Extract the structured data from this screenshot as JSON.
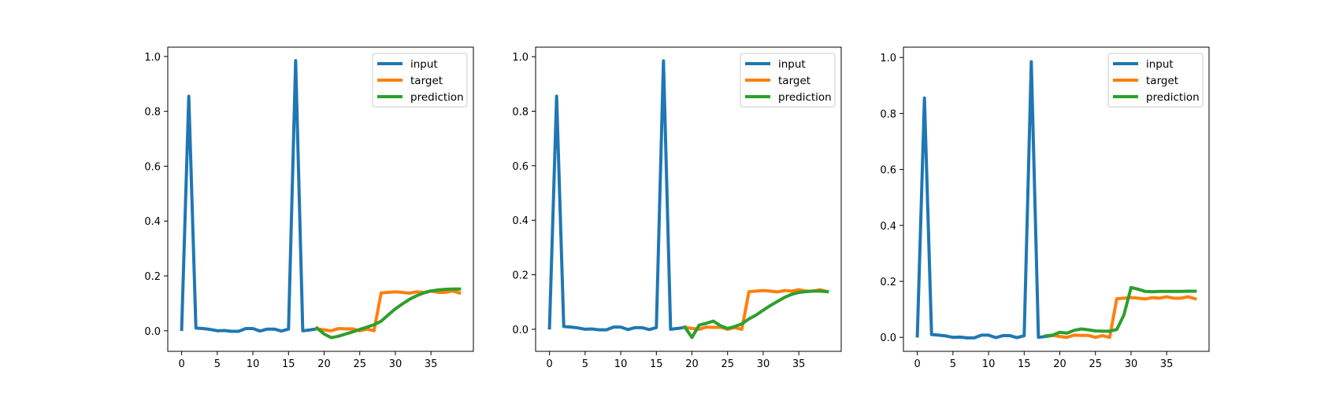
{
  "colors": {
    "input": "#1f77b4",
    "target": "#ff7f0e",
    "prediction": "#2ca02c"
  },
  "chart_data": [
    {
      "type": "line",
      "xlim": [
        -1.95,
        40.95
      ],
      "ylim": [
        -0.075,
        1.034
      ],
      "xticks": [
        0,
        5,
        10,
        15,
        20,
        25,
        30,
        35
      ],
      "yticks": [
        0.0,
        0.2,
        0.4,
        0.6,
        0.8,
        1.0
      ],
      "ytick_labels": [
        "0.0",
        "0.2",
        "0.4",
        "0.6",
        "0.8",
        "1.0"
      ],
      "legend": {
        "position": "upper right",
        "entries": [
          "input",
          "target",
          "prediction"
        ]
      },
      "series": [
        {
          "name": "input",
          "color": "#1f77b4",
          "x": [
            0,
            1,
            2,
            3,
            4,
            5,
            6,
            7,
            8,
            9,
            10,
            11,
            12,
            13,
            14,
            15,
            16,
            17,
            18,
            19
          ],
          "y": [
            0.005,
            0.855,
            0.01,
            0.008,
            0.005,
            0.0,
            0.001,
            -0.002,
            -0.002,
            0.008,
            0.008,
            -0.001,
            0.006,
            0.006,
            -0.001,
            0.006,
            0.985,
            0.0,
            0.003,
            0.007
          ]
        },
        {
          "name": "target",
          "color": "#ff7f0e",
          "x": [
            19,
            20,
            21,
            22,
            23,
            24,
            25,
            26,
            27,
            28,
            29,
            30,
            31,
            32,
            33,
            34,
            35,
            36,
            37,
            38,
            39
          ],
          "y": [
            0.007,
            0.003,
            0.0,
            0.008,
            0.007,
            0.007,
            0.0,
            0.006,
            0.0,
            0.138,
            0.14,
            0.142,
            0.14,
            0.137,
            0.142,
            0.14,
            0.145,
            0.14,
            0.14,
            0.145,
            0.138
          ]
        },
        {
          "name": "prediction",
          "color": "#2ca02c",
          "x": [
            19,
            20,
            21,
            22,
            23,
            24,
            25,
            26,
            27,
            28,
            29,
            30,
            31,
            32,
            33,
            34,
            35,
            36,
            37,
            38,
            39
          ],
          "y": [
            0.01,
            -0.012,
            -0.025,
            -0.02,
            -0.012,
            -0.004,
            0.005,
            0.013,
            0.022,
            0.035,
            0.058,
            0.08,
            0.098,
            0.115,
            0.128,
            0.138,
            0.145,
            0.149,
            0.151,
            0.152,
            0.152
          ]
        }
      ]
    },
    {
      "type": "line",
      "xlim": [
        -1.95,
        40.95
      ],
      "ylim": [
        -0.081,
        1.035
      ],
      "xticks": [
        0,
        5,
        10,
        15,
        20,
        25,
        30,
        35
      ],
      "yticks": [
        0.0,
        0.2,
        0.4,
        0.6,
        0.8,
        1.0
      ],
      "ytick_labels": [
        "0.0",
        "0.2",
        "0.4",
        "0.6",
        "0.8",
        "1.0"
      ],
      "legend": {
        "position": "upper right",
        "entries": [
          "input",
          "target",
          "prediction"
        ]
      },
      "series": [
        {
          "name": "input",
          "color": "#1f77b4",
          "x": [
            0,
            1,
            2,
            3,
            4,
            5,
            6,
            7,
            8,
            9,
            10,
            11,
            12,
            13,
            14,
            15,
            16,
            17,
            18,
            19
          ],
          "y": [
            0.005,
            0.855,
            0.01,
            0.008,
            0.005,
            0.0,
            0.001,
            -0.002,
            -0.002,
            0.008,
            0.008,
            -0.001,
            0.006,
            0.006,
            -0.001,
            0.006,
            0.985,
            0.0,
            0.003,
            0.007
          ]
        },
        {
          "name": "target",
          "color": "#ff7f0e",
          "x": [
            19,
            20,
            21,
            22,
            23,
            24,
            25,
            26,
            27,
            28,
            29,
            30,
            31,
            32,
            33,
            34,
            35,
            36,
            37,
            38,
            39
          ],
          "y": [
            0.007,
            0.003,
            0.0,
            0.008,
            0.007,
            0.007,
            0.0,
            0.006,
            0.0,
            0.138,
            0.14,
            0.142,
            0.14,
            0.137,
            0.142,
            0.14,
            0.145,
            0.14,
            0.14,
            0.145,
            0.138
          ]
        },
        {
          "name": "prediction",
          "color": "#2ca02c",
          "x": [
            19,
            20,
            21,
            22,
            23,
            24,
            25,
            26,
            27,
            28,
            29,
            30,
            31,
            32,
            33,
            34,
            35,
            36,
            37,
            38,
            39
          ],
          "y": [
            0.008,
            -0.03,
            0.015,
            0.022,
            0.03,
            0.013,
            0.003,
            0.01,
            0.02,
            0.038,
            0.052,
            0.07,
            0.087,
            0.102,
            0.117,
            0.128,
            0.135,
            0.138,
            0.14,
            0.14,
            0.138
          ]
        }
      ]
    },
    {
      "type": "line",
      "xlim": [
        -1.95,
        40.95
      ],
      "ylim": [
        -0.05,
        1.037
      ],
      "xticks": [
        0,
        5,
        10,
        15,
        20,
        25,
        30,
        35
      ],
      "yticks": [
        0.0,
        0.2,
        0.4,
        0.6,
        0.8,
        1.0
      ],
      "ytick_labels": [
        "0.0",
        "0.2",
        "0.4",
        "0.6",
        "0.8",
        "1.0"
      ],
      "legend": {
        "position": "upper right",
        "entries": [
          "input",
          "target",
          "prediction"
        ]
      },
      "series": [
        {
          "name": "input",
          "color": "#1f77b4",
          "x": [
            0,
            1,
            2,
            3,
            4,
            5,
            6,
            7,
            8,
            9,
            10,
            11,
            12,
            13,
            14,
            15,
            16,
            17,
            18,
            19
          ],
          "y": [
            0.005,
            0.855,
            0.01,
            0.008,
            0.005,
            0.0,
            0.001,
            -0.002,
            -0.002,
            0.008,
            0.008,
            -0.001,
            0.006,
            0.006,
            -0.001,
            0.006,
            0.985,
            0.0,
            0.003,
            0.007
          ]
        },
        {
          "name": "target",
          "color": "#ff7f0e",
          "x": [
            19,
            20,
            21,
            22,
            23,
            24,
            25,
            26,
            27,
            28,
            29,
            30,
            31,
            32,
            33,
            34,
            35,
            36,
            37,
            38,
            39
          ],
          "y": [
            0.007,
            0.003,
            0.0,
            0.008,
            0.007,
            0.007,
            0.0,
            0.006,
            0.0,
            0.138,
            0.14,
            0.142,
            0.14,
            0.137,
            0.142,
            0.14,
            0.145,
            0.14,
            0.14,
            0.145,
            0.138
          ]
        },
        {
          "name": "prediction",
          "color": "#2ca02c",
          "x": [
            18,
            19,
            20,
            21,
            22,
            23,
            24,
            25,
            26,
            27,
            28,
            29,
            30,
            31,
            32,
            33,
            34,
            35,
            36,
            37,
            38,
            39
          ],
          "y": [
            0.005,
            0.008,
            0.018,
            0.015,
            0.025,
            0.03,
            0.027,
            0.023,
            0.022,
            0.022,
            0.028,
            0.08,
            0.178,
            0.172,
            0.164,
            0.163,
            0.164,
            0.164,
            0.164,
            0.164,
            0.165,
            0.165
          ]
        }
      ]
    }
  ]
}
